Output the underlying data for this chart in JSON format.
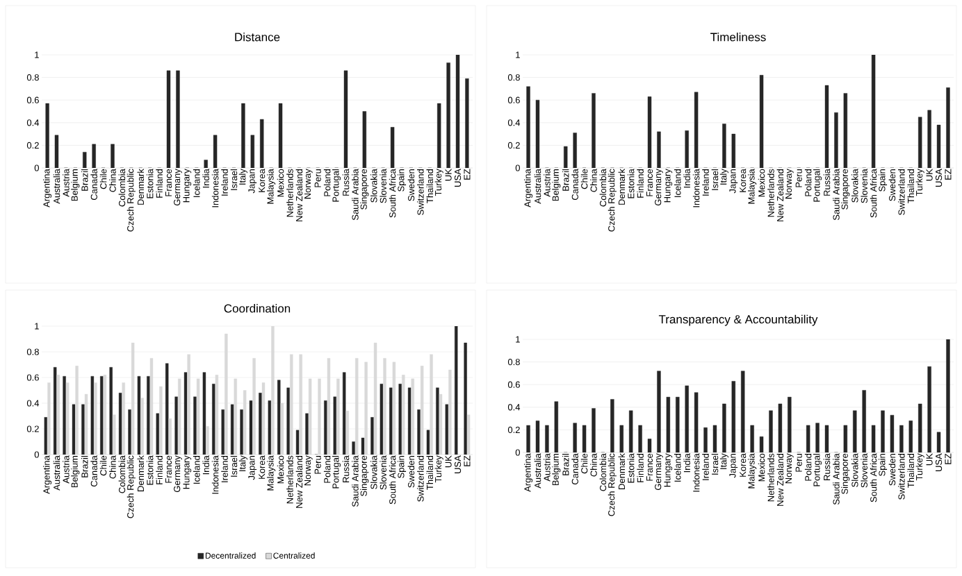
{
  "chart_data": [
    {
      "type": "bar",
      "title": "Distance",
      "categories": [
        "Argentina",
        "Australia",
        "Austria",
        "Belgium",
        "Brazil",
        "Canada",
        "Chile",
        "China",
        "Colombia",
        "Czech Republic",
        "Denmark",
        "Estonia",
        "Finland",
        "France",
        "Germany",
        "Hungary",
        "Iceland",
        "India",
        "Indonesia",
        "Ireland",
        "Israel",
        "Italy",
        "Japan",
        "Korea",
        "Malaysia",
        "Mexico",
        "Netherlands",
        "New Zealand",
        "Norway",
        "Peru",
        "Poland",
        "Portugal",
        "Russia",
        "Saudi Arabia",
        "Singapore",
        "Slovakia",
        "Slovenia",
        "South Africa",
        "Spain",
        "Sweden",
        "Switzerland",
        "Thailand",
        "Turkey",
        "UK",
        "USA",
        "EZ"
      ],
      "values": [
        0.57,
        0.29,
        0,
        0,
        0.14,
        0.21,
        0,
        0.21,
        0,
        0,
        0,
        0,
        0,
        0.86,
        0.86,
        0,
        0,
        0.07,
        0.29,
        0,
        0,
        0.57,
        0.29,
        0.43,
        0,
        0.57,
        0,
        0,
        0,
        0,
        0,
        0,
        0.86,
        0,
        0.5,
        0,
        0,
        0.36,
        0,
        0,
        0,
        0,
        0.57,
        0.93,
        1,
        0.79
      ],
      "color": "#262626",
      "ylim": [
        0,
        1
      ],
      "yticks": [
        0,
        0.2,
        0.4,
        0.6,
        0.8,
        1
      ],
      "grid": "y"
    },
    {
      "type": "bar",
      "title": "Timeliness",
      "categories": [
        "Argentina",
        "Australia",
        "Austria",
        "Belgium",
        "Brazil",
        "Canada",
        "Chile",
        "China",
        "Colombia",
        "Czech Republic",
        "Denmark",
        "Estonia",
        "Finland",
        "France",
        "Germany",
        "Hungary",
        "Iceland",
        "India",
        "Indonesia",
        "Ireland",
        "Israel",
        "Italy",
        "Japan",
        "Korea",
        "Malaysia",
        "Mexico",
        "Netherlands",
        "New Zealand",
        "Norway",
        "Peru",
        "Poland",
        "Portugal",
        "Russia",
        "Saudi Arabia",
        "Singapore",
        "Slovakia",
        "Slovenia",
        "South Africa",
        "Spain",
        "Sweden",
        "Switzerland",
        "Thailand",
        "Turkey",
        "UK",
        "USA",
        "EZ"
      ],
      "values": [
        0.72,
        0.6,
        0,
        0,
        0.19,
        0.31,
        0,
        0.66,
        0,
        0,
        0,
        0,
        0,
        0.63,
        0.32,
        0,
        0,
        0.33,
        0.67,
        0,
        0,
        0.39,
        0.3,
        0,
        0,
        0.82,
        0,
        0,
        0,
        0,
        0,
        0,
        0.73,
        0.49,
        0.66,
        0,
        0,
        1,
        0,
        0,
        0,
        0,
        0.45,
        0.51,
        0.38,
        0.71
      ],
      "color": "#262626",
      "ylim": [
        0,
        1
      ],
      "yticks": [
        0,
        0.2,
        0.4,
        0.6,
        0.8,
        1
      ],
      "grid": "y"
    },
    {
      "type": "bar",
      "title": "Coordination",
      "categories": [
        "Argentina",
        "Australia",
        "Austria",
        "Belgium",
        "Brazil",
        "Canada",
        "Chile",
        "China",
        "Colombia",
        "Czech Republic",
        "Denmark",
        "Estonia",
        "Finland",
        "France",
        "Germany",
        "Hungary",
        "Iceland",
        "India",
        "Indonesia",
        "Ireland",
        "Israel",
        "Italy",
        "Japan",
        "Korea",
        "Malaysia",
        "Mexico",
        "Netherlands",
        "New Zealand",
        "Norway",
        "Peru",
        "Poland",
        "Portugal",
        "Russia",
        "Saudi Arabia",
        "Singapore",
        "Slovakia",
        "Slovenia",
        "South Africa",
        "Spain",
        "Sweden",
        "Switzerland",
        "Thailand",
        "Turkey",
        "UK",
        "USA",
        "EZ"
      ],
      "series": [
        {
          "name": "Decentralized",
          "color": "#262626",
          "values": [
            0.29,
            0.68,
            0.61,
            0.39,
            0.39,
            0.61,
            0.61,
            0.68,
            0.48,
            0.35,
            0.61,
            0.61,
            0.32,
            0.71,
            0.45,
            0.64,
            0.45,
            0.64,
            0.55,
            0.35,
            0.39,
            0.35,
            0.42,
            0.48,
            0.42,
            0.58,
            0.52,
            0.19,
            0.32,
            0,
            0.42,
            0.45,
            0.64,
            0.1,
            0.13,
            0.29,
            0.55,
            0.52,
            0.55,
            0.52,
            0.35,
            0.19,
            0.52,
            0.39,
            1,
            0.87
          ]
        },
        {
          "name": "Centralized",
          "color": "#d9d9d9",
          "values": [
            0.56,
            0.62,
            0.56,
            0.69,
            0.47,
            0.56,
            0.62,
            0.31,
            0.56,
            0.87,
            0.44,
            0.75,
            0.53,
            0.28,
            0.59,
            0.78,
            0.59,
            0.22,
            0.62,
            0.94,
            0.59,
            0.5,
            0.75,
            0.56,
            1,
            0.4,
            0.78,
            0.78,
            0.59,
            0.59,
            0.75,
            0.59,
            0.34,
            0.75,
            0.72,
            0.87,
            0.75,
            0.72,
            0.62,
            0.59,
            0.69,
            0.78,
            0.47,
            0.66,
            0,
            0.31
          ]
        }
      ],
      "ylim": [
        0,
        1
      ],
      "yticks": [
        0,
        0.2,
        0.4,
        0.6,
        0.8,
        1
      ],
      "grid": "y",
      "legend": "bottom"
    },
    {
      "type": "bar",
      "title": "Transparency & Accountability",
      "categories": [
        "Argentina",
        "Australia",
        "Austria",
        "Belgium",
        "Brazil",
        "Canada",
        "Chile",
        "China",
        "Colombia",
        "Czech Republic",
        "Denmark",
        "Estonia",
        "Finland",
        "France",
        "Germany",
        "Hungary",
        "Iceland",
        "India",
        "Indonesia",
        "Ireland",
        "Israel",
        "Italy",
        "Japan",
        "Korea",
        "Malaysia",
        "Mexico",
        "Netherlands",
        "New Zealand",
        "Norway",
        "Peru",
        "Poland",
        "Portugal",
        "Russia",
        "Saudi Arabia",
        "Singapore",
        "Slovakia",
        "Slovenia",
        "South Africa",
        "Spain",
        "Sweden",
        "Switzerland",
        "Thailand",
        "Turkey",
        "UK",
        "USA",
        "EZ"
      ],
      "values": [
        0.24,
        0.28,
        0.24,
        0.45,
        0,
        0.26,
        0.24,
        0.39,
        0,
        0.47,
        0.24,
        0.37,
        0.24,
        0.12,
        0.72,
        0.49,
        0.49,
        0.59,
        0.53,
        0.22,
        0.24,
        0.43,
        0.63,
        0.72,
        0.24,
        0.14,
        0.37,
        0.43,
        0.49,
        0,
        0.24,
        0.26,
        0.24,
        0,
        0.24,
        0.37,
        0.55,
        0.24,
        0.37,
        0.33,
        0.24,
        0.28,
        0.43,
        0.76,
        0.18,
        1
      ],
      "color": "#262626",
      "ylim": [
        0,
        1
      ],
      "yticks": [
        0,
        0.2,
        0.4,
        0.6,
        0.8,
        1
      ],
      "grid": "y"
    }
  ]
}
